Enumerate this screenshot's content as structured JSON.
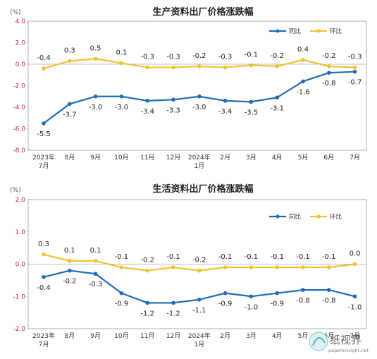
{
  "chart_data": [
    {
      "type": "line",
      "title": "生产资料出厂价格涨跌幅",
      "unit_label": "(%)",
      "categories": [
        "2023年\n7月",
        "8月",
        "9月",
        "10月",
        "11月",
        "12月",
        "2024年\n1月",
        "2月",
        "3月",
        "4月",
        "5月",
        "6月",
        "7月"
      ],
      "ylim": [
        -8.0,
        4.0
      ],
      "yticks": [
        "4.0",
        "2.0",
        "0.0",
        "-2.0",
        "-4.0",
        "-6.0",
        "-8.0"
      ],
      "legend_position": "top-right",
      "grid": false,
      "series": [
        {
          "name": "同比",
          "color": "#1f6db5",
          "values": [
            -5.5,
            -3.7,
            -3.0,
            -3.0,
            -3.4,
            -3.3,
            -3.0,
            -3.4,
            -3.5,
            -3.1,
            -1.6,
            -0.8,
            -0.7
          ],
          "labels": [
            "-5.5",
            "-3.7",
            "-3.0",
            "-3.0",
            "-3.4",
            "-3.3",
            "-3.0",
            "-3.4",
            "-3.5",
            "-3.1",
            "-1.6",
            "-0.8",
            "-0.7"
          ]
        },
        {
          "name": "环比",
          "color": "#f2c12e",
          "values": [
            -0.4,
            0.3,
            0.5,
            0.1,
            -0.3,
            -0.3,
            -0.2,
            -0.3,
            -0.1,
            -0.2,
            0.4,
            -0.2,
            -0.3
          ],
          "labels": [
            "-0.4",
            "0.3",
            "0.5",
            "0.1",
            "-0.3",
            "-0.3",
            "-0.2",
            "-0.3",
            "-0.1",
            "-0.2",
            "0.4",
            "-0.2",
            "-0.3"
          ]
        }
      ]
    },
    {
      "type": "line",
      "title": "生活资料出厂价格涨跌幅",
      "unit_label": "(%)",
      "categories": [
        "2023年\n7月",
        "8月",
        "9月",
        "10月",
        "11月",
        "12月",
        "2024年\n1月",
        "2月",
        "3月",
        "4月",
        "5月",
        "6月",
        "7月"
      ],
      "ylim": [
        -2.0,
        2.0
      ],
      "yticks": [
        "2.0",
        "1.0",
        "0.0",
        "-1.0",
        "-2.0"
      ],
      "legend_position": "top-right",
      "grid": false,
      "series": [
        {
          "name": "同比",
          "color": "#1f6db5",
          "values": [
            -0.4,
            -0.2,
            -0.3,
            -0.9,
            -1.2,
            -1.2,
            -1.1,
            -0.9,
            -1.0,
            -0.9,
            -0.8,
            -0.8,
            -1.0
          ],
          "labels": [
            "-0.4",
            "-0.2",
            "-0.3",
            "-0.9",
            "-1.2",
            "-1.2",
            "-1.1",
            "-0.9",
            "-1.0",
            "-0.9",
            "-0.8",
            "-0.8",
            "-1.0"
          ]
        },
        {
          "name": "环比",
          "color": "#f2c12e",
          "values": [
            0.3,
            0.1,
            0.1,
            -0.1,
            -0.2,
            -0.1,
            -0.2,
            -0.1,
            -0.1,
            -0.1,
            -0.1,
            -0.1,
            0.0
          ],
          "labels": [
            "0.3",
            "0.1",
            "0.1",
            "-0.1",
            "-0.2",
            "-0.1",
            "-0.2",
            "-0.1",
            "-0.1",
            "-0.1",
            "-0.1",
            "-0.1",
            "0.0"
          ]
        }
      ]
    }
  ],
  "watermark": {
    "name": "纸视界",
    "url": "papersinsight.net"
  }
}
